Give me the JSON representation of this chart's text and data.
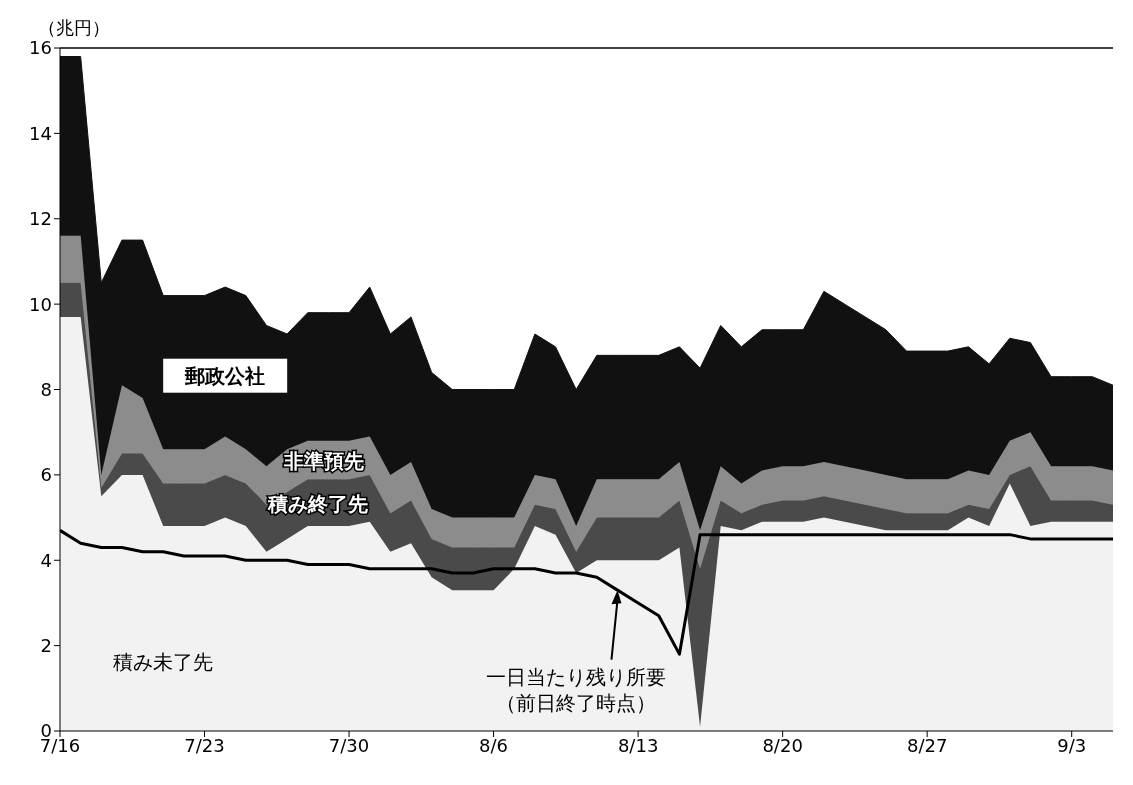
{
  "chart_data": {
    "type": "area",
    "stacked": true,
    "ylabel": "（兆円）",
    "categories": [
      "7/16",
      null,
      null,
      null,
      null,
      null,
      null,
      "7/23",
      null,
      null,
      null,
      null,
      null,
      null,
      "7/30",
      null,
      null,
      null,
      null,
      null,
      null,
      "8/6",
      null,
      null,
      null,
      null,
      null,
      null,
      "8/13",
      null,
      null,
      null,
      null,
      null,
      null,
      "8/20",
      null,
      null,
      null,
      null,
      null,
      null,
      "8/27",
      null,
      null,
      null,
      null,
      null,
      null,
      "9/3",
      null,
      null
    ],
    "ylim": [
      0,
      16
    ],
    "yticks": [
      0,
      2,
      4,
      6,
      8,
      10,
      12,
      14,
      16
    ],
    "grid": false,
    "legend": false,
    "series": [
      {
        "name": "積み未了先",
        "color": "#f2f2f2",
        "values": [
          9.7,
          9.7,
          5.5,
          6.0,
          6.0,
          4.8,
          4.8,
          4.8,
          5.0,
          4.8,
          4.2,
          4.5,
          4.8,
          4.8,
          4.8,
          4.9,
          4.2,
          4.4,
          3.6,
          3.3,
          3.3,
          3.3,
          3.8,
          4.8,
          4.6,
          3.7,
          4.0,
          4.0,
          4.0,
          4.0,
          4.3,
          0.1,
          4.8,
          4.7,
          4.9,
          4.9,
          4.9,
          5.0,
          4.9,
          4.8,
          4.7,
          4.7,
          4.7,
          4.7,
          5.0,
          4.8,
          5.8,
          4.8,
          4.9,
          4.9,
          4.9,
          4.9
        ]
      },
      {
        "name": "積み終了先",
        "color": "#4a4a4a",
        "values": [
          0.8,
          0.8,
          0.2,
          0.5,
          0.5,
          1.0,
          1.0,
          1.0,
          1.0,
          1.0,
          1.1,
          1.1,
          1.1,
          1.1,
          1.1,
          1.1,
          0.9,
          1.0,
          0.9,
          1.0,
          1.0,
          1.0,
          0.5,
          0.5,
          0.6,
          0.5,
          1.0,
          1.0,
          1.0,
          1.0,
          1.1,
          3.7,
          0.6,
          0.4,
          0.4,
          0.5,
          0.5,
          0.5,
          0.5,
          0.5,
          0.5,
          0.4,
          0.4,
          0.4,
          0.3,
          0.4,
          0.2,
          1.4,
          0.5,
          0.5,
          0.5,
          0.4
        ]
      },
      {
        "name": "非準預先",
        "color": "#8c8c8c",
        "values": [
          1.1,
          1.1,
          0.3,
          1.6,
          1.3,
          0.8,
          0.8,
          0.8,
          0.9,
          0.8,
          0.9,
          1.0,
          0.9,
          0.9,
          0.9,
          0.9,
          0.9,
          0.9,
          0.7,
          0.7,
          0.7,
          0.7,
          0.7,
          0.7,
          0.7,
          0.6,
          0.9,
          0.9,
          0.9,
          0.9,
          0.9,
          0.9,
          0.8,
          0.7,
          0.8,
          0.8,
          0.8,
          0.8,
          0.8,
          0.8,
          0.8,
          0.8,
          0.8,
          0.8,
          0.8,
          0.8,
          0.8,
          0.8,
          0.8,
          0.8,
          0.8,
          0.8
        ]
      },
      {
        "name": "郵政公社",
        "color": "#111111",
        "values": [
          4.2,
          4.2,
          4.5,
          3.4,
          3.7,
          3.6,
          3.6,
          3.6,
          3.5,
          3.6,
          3.3,
          2.7,
          3.0,
          3.0,
          3.0,
          3.5,
          3.3,
          3.4,
          3.2,
          3.0,
          3.0,
          3.0,
          3.0,
          3.3,
          3.1,
          3.2,
          2.9,
          2.9,
          2.9,
          2.9,
          2.7,
          3.8,
          3.3,
          3.2,
          3.3,
          3.2,
          3.2,
          4.0,
          3.8,
          3.6,
          3.4,
          3.0,
          3.0,
          3.0,
          2.9,
          2.6,
          2.4,
          2.1,
          2.1,
          2.1,
          2.1,
          2.0
        ]
      },
      {
        "name": "一日当たり残り所要（前日終了時点）",
        "type": "line",
        "color": "#000000",
        "values": [
          4.7,
          4.4,
          4.3,
          4.3,
          4.2,
          4.2,
          4.1,
          4.1,
          4.1,
          4.0,
          4.0,
          4.0,
          3.9,
          3.9,
          3.9,
          3.8,
          3.8,
          3.8,
          3.8,
          3.7,
          3.7,
          3.8,
          3.8,
          3.8,
          3.7,
          3.7,
          3.6,
          3.3,
          3.0,
          2.7,
          1.8,
          4.6,
          4.6,
          4.6,
          4.6,
          4.6,
          4.6,
          4.6,
          4.6,
          4.6,
          4.6,
          4.6,
          4.6,
          4.6,
          4.6,
          4.6,
          4.6,
          4.5,
          4.5,
          4.5,
          4.5,
          4.5
        ]
      }
    ]
  }
}
